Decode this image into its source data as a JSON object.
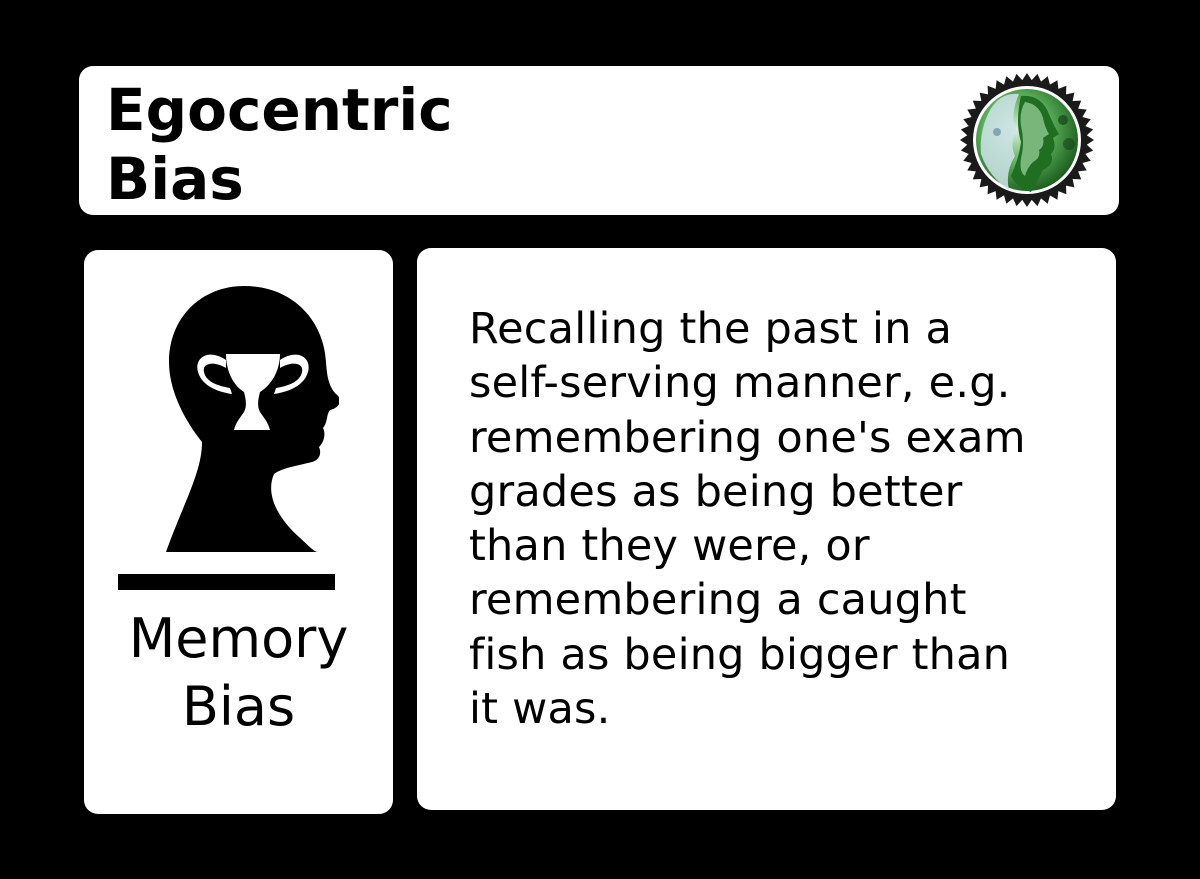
{
  "card": {
    "title_lines": [
      "Egocentric",
      "Bias"
    ],
    "category_lines": [
      "Memory",
      "Bias"
    ],
    "description_lines": [
      "Recalling the past in a",
      "self-serving manner, e.g.",
      "remembering one's exam",
      "grades as being better",
      "than they were, or",
      "remembering a caught",
      "fish as being bigger than",
      "it was."
    ]
  },
  "icons": {
    "seal": "green-face-seal-icon",
    "category": "head-with-trophy-icon"
  },
  "colors": {
    "background": "#000000",
    "panel": "#ffffff",
    "text": "#000000",
    "seal_green": "#2e8b2e"
  }
}
